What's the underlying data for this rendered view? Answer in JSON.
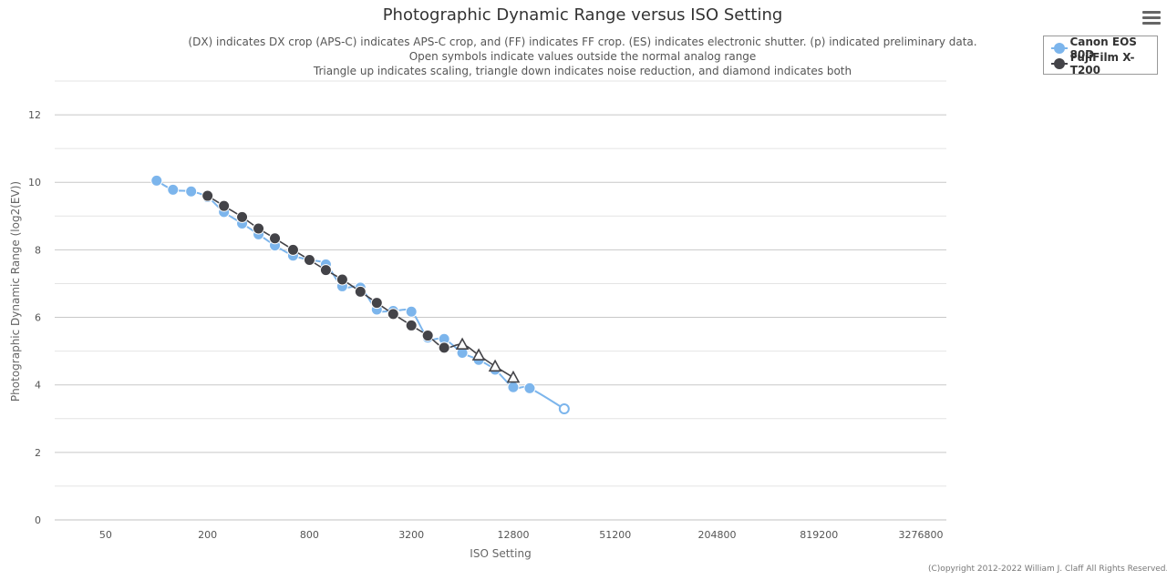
{
  "chart_data": {
    "type": "line",
    "title": "Photographic Dynamic Range versus ISO Setting",
    "subtitle": [
      "(DX) indicates DX crop (APS-C) indicates APS-C crop, and (FF) indicates FF crop. (ES) indicates electronic shutter. (p) indicated preliminary data.",
      "Open symbols indicate values outside the normal analog range",
      "Triangle up indicates scaling, triangle down indicates noise reduction, and diamond indicates both"
    ],
    "xlabel": "ISO Setting",
    "ylabel": "Photographic Dynamic Range (log2(EV))",
    "x_scale": "log2",
    "x_ticks": [
      "50",
      "200",
      "800",
      "3200",
      "12800",
      "51200",
      "204800",
      "819200",
      "3276800"
    ],
    "x_tick_values": [
      50,
      200,
      800,
      3200,
      12800,
      51200,
      204800,
      819200,
      3276800
    ],
    "xlim": [
      25,
      4633960
    ],
    "ylim": [
      0,
      13
    ],
    "y_ticks": [
      "0",
      "2",
      "4",
      "6",
      "8",
      "10",
      "12"
    ],
    "y_tick_values": [
      0,
      2,
      4,
      6,
      8,
      10,
      12
    ],
    "grid": "horizontal",
    "legend_position": "top-right",
    "series": [
      {
        "name": "Canon EOS 80D",
        "color": "#7cb5ec",
        "points": [
          {
            "x": 100,
            "y": 10.05,
            "marker": "circle"
          },
          {
            "x": 125,
            "y": 9.78,
            "marker": "circle"
          },
          {
            "x": 160,
            "y": 9.73,
            "marker": "circle"
          },
          {
            "x": 200,
            "y": 9.56,
            "marker": "circle"
          },
          {
            "x": 250,
            "y": 9.12,
            "marker": "circle"
          },
          {
            "x": 320,
            "y": 8.78,
            "marker": "circle"
          },
          {
            "x": 400,
            "y": 8.46,
            "marker": "circle"
          },
          {
            "x": 500,
            "y": 8.13,
            "marker": "circle"
          },
          {
            "x": 640,
            "y": 7.83,
            "marker": "circle"
          },
          {
            "x": 800,
            "y": 7.7,
            "marker": "circle"
          },
          {
            "x": 1000,
            "y": 7.57,
            "marker": "circle"
          },
          {
            "x": 1250,
            "y": 6.92,
            "marker": "circle"
          },
          {
            "x": 1600,
            "y": 6.88,
            "marker": "circle"
          },
          {
            "x": 2000,
            "y": 6.23,
            "marker": "circle"
          },
          {
            "x": 2500,
            "y": 6.19,
            "marker": "circle"
          },
          {
            "x": 3200,
            "y": 6.17,
            "marker": "circle"
          },
          {
            "x": 4000,
            "y": 5.4,
            "marker": "circle"
          },
          {
            "x": 5000,
            "y": 5.36,
            "marker": "circle"
          },
          {
            "x": 6400,
            "y": 4.95,
            "marker": "circle"
          },
          {
            "x": 8000,
            "y": 4.74,
            "marker": "circle"
          },
          {
            "x": 10000,
            "y": 4.45,
            "marker": "circle"
          },
          {
            "x": 12800,
            "y": 3.93,
            "marker": "circle"
          },
          {
            "x": 16000,
            "y": 3.9,
            "marker": "circle"
          },
          {
            "x": 25600,
            "y": 3.29,
            "marker": "circle-open"
          }
        ]
      },
      {
        "name": "FujiFilm X-T200",
        "color": "#434348",
        "points": [
          {
            "x": 200,
            "y": 9.6,
            "marker": "circle"
          },
          {
            "x": 250,
            "y": 9.3,
            "marker": "circle"
          },
          {
            "x": 320,
            "y": 8.97,
            "marker": "circle"
          },
          {
            "x": 400,
            "y": 8.63,
            "marker": "circle"
          },
          {
            "x": 500,
            "y": 8.34,
            "marker": "circle"
          },
          {
            "x": 640,
            "y": 8.0,
            "marker": "circle"
          },
          {
            "x": 800,
            "y": 7.7,
            "marker": "circle"
          },
          {
            "x": 1000,
            "y": 7.4,
            "marker": "circle"
          },
          {
            "x": 1250,
            "y": 7.12,
            "marker": "circle"
          },
          {
            "x": 1600,
            "y": 6.76,
            "marker": "circle"
          },
          {
            "x": 2000,
            "y": 6.43,
            "marker": "circle"
          },
          {
            "x": 2500,
            "y": 6.1,
            "marker": "circle"
          },
          {
            "x": 3200,
            "y": 5.76,
            "marker": "circle"
          },
          {
            "x": 4000,
            "y": 5.46,
            "marker": "circle"
          },
          {
            "x": 5000,
            "y": 5.1,
            "marker": "circle"
          },
          {
            "x": 6400,
            "y": 5.2,
            "marker": "triangle-up-open"
          },
          {
            "x": 8000,
            "y": 4.88,
            "marker": "triangle-up-open"
          },
          {
            "x": 10000,
            "y": 4.55,
            "marker": "triangle-up-open"
          },
          {
            "x": 12800,
            "y": 4.22,
            "marker": "triangle-up-open"
          }
        ]
      }
    ]
  },
  "legend": {
    "items": [
      {
        "label": "Canon EOS 80D",
        "color": "#7cb5ec"
      },
      {
        "label": "FujiFilm X-T200",
        "color": "#434348"
      }
    ]
  },
  "menu": {
    "icon": "hamburger-menu-icon"
  },
  "copyright": "(C)opyright 2012-2022 William J. Claff All Rights Reserved."
}
